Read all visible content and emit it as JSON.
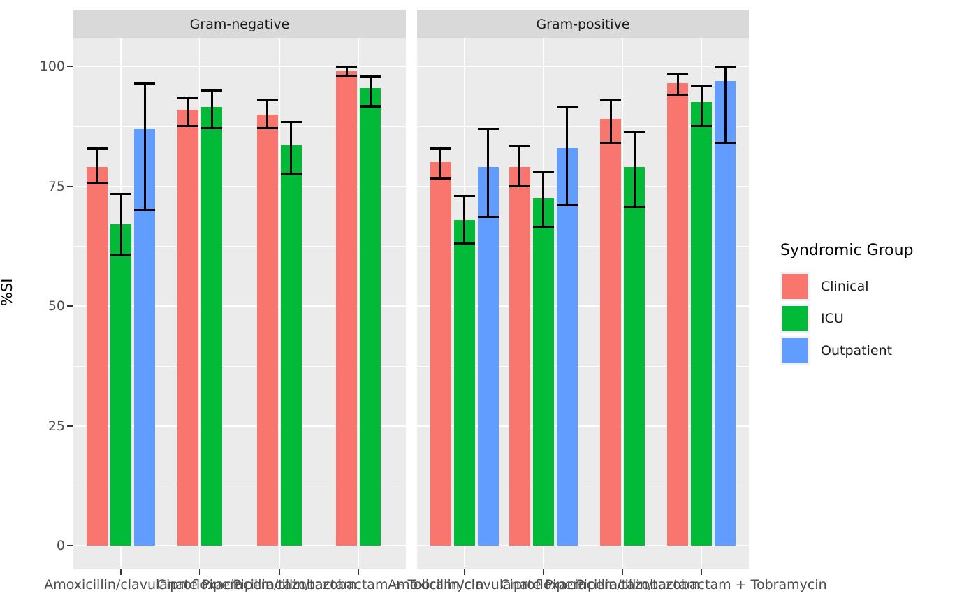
{
  "chart_data": {
    "type": "bar",
    "title": "",
    "ylabel": "%SI",
    "xlabel": "",
    "ylim": [
      0,
      100
    ],
    "y_ticks": [
      0,
      25,
      50,
      75,
      100
    ],
    "grid": "on",
    "error_bars": true,
    "error_bar_color": "#000000",
    "panel_background": "#ebebeb",
    "strip_background": "#d9d9d9",
    "gridline_color": "#ffffff",
    "legend": {
      "title": "Syndromic Group",
      "position": "right",
      "entries": [
        {
          "label": "Clinical",
          "color": "#F8766D"
        },
        {
          "label": "ICU",
          "color": "#00BA38"
        },
        {
          "label": "Outpatient",
          "color": "#619CFF"
        }
      ]
    },
    "categories": [
      "Amoxicillin/clavulanate",
      "Ciprofloxacin",
      "Piperacillin/tazobactam",
      "Piperacillin/tazobactam + Tobramycin"
    ],
    "facets": [
      {
        "label": "Gram-negative",
        "series": [
          {
            "name": "Clinical",
            "color": "#F8766D",
            "values": [
              79,
              91,
              90,
              99
            ],
            "err_low": [
              75.5,
              87.5,
              87,
              98
            ],
            "err_high": [
              83,
              93.5,
              93,
              100
            ]
          },
          {
            "name": "ICU",
            "color": "#00BA38",
            "values": [
              67,
              91.5,
              83.5,
              95.5
            ],
            "err_low": [
              60.5,
              87,
              77.5,
              91.5
            ],
            "err_high": [
              73.5,
              95,
              88.5,
              98
            ]
          },
          {
            "name": "Outpatient",
            "color": "#619CFF",
            "values": [
              87,
              null,
              null,
              null
            ],
            "err_low": [
              70,
              null,
              null,
              null
            ],
            "err_high": [
              96.5,
              null,
              null,
              null
            ]
          }
        ]
      },
      {
        "label": "Gram-positive",
        "series": [
          {
            "name": "Clinical",
            "color": "#F8766D",
            "values": [
              80,
              79,
              89,
              96.5
            ],
            "err_low": [
              76.5,
              75,
              84,
              94
            ],
            "err_high": [
              83,
              83.5,
              93,
              98.5
            ]
          },
          {
            "name": "ICU",
            "color": "#00BA38",
            "values": [
              68,
              72.5,
              79,
              92.5
            ],
            "err_low": [
              63,
              66.5,
              70.5,
              87.5
            ],
            "err_high": [
              73,
              78,
              86.5,
              96
            ]
          },
          {
            "name": "Outpatient",
            "color": "#619CFF",
            "values": [
              79,
              83,
              null,
              97
            ],
            "err_low": [
              68.5,
              71,
              null,
              84
            ],
            "err_high": [
              87,
              91.5,
              null,
              100
            ]
          }
        ]
      }
    ]
  }
}
